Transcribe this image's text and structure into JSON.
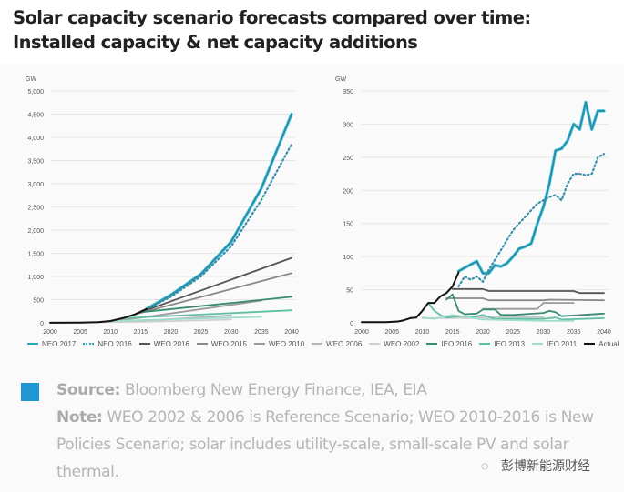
{
  "title": "Solar capacity scenario forecasts compared over time: Installed capacity & net capacity additions",
  "legend": [
    {
      "name": "NEO 2017",
      "color": "#2aa6c0",
      "style": "solid"
    },
    {
      "name": "NEO 2016",
      "color": "#2aa6c0",
      "style": "dotted"
    },
    {
      "name": "WEO 2016",
      "color": "#555555",
      "style": "solid"
    },
    {
      "name": "WEO 2015",
      "color": "#8a8a8a",
      "style": "solid"
    },
    {
      "name": "WEO 2010",
      "color": "#9a9a9a",
      "style": "solid"
    },
    {
      "name": "WEO 2006",
      "color": "#b5b5b5",
      "style": "solid"
    },
    {
      "name": "WEO 2002",
      "color": "#cfcfcf",
      "style": "solid"
    },
    {
      "name": "IEO 2016",
      "color": "#3a8a72",
      "style": "solid"
    },
    {
      "name": "IEO 2013",
      "color": "#5fbfa5",
      "style": "solid"
    },
    {
      "name": "IEO 2011",
      "color": "#9fdccb",
      "style": "solid"
    },
    {
      "name": "Actual",
      "color": "#111111",
      "style": "solid"
    }
  ],
  "footer": {
    "source_label": "Source:",
    "source_text": " Bloomberg New Energy Finance, IEA, EIA",
    "note_label": "Note:",
    "note_text": " WEO 2002 & 2006 is Reference Scenario; WEO 2010-2016 is New Policies Scenario; solar includes utility-scale, small-scale PV and solar thermal.",
    "watermark": "彭博新能源财经"
  },
  "chart_data": [
    {
      "type": "line",
      "title": "Installed capacity",
      "ylabel": "GW",
      "xlabel": "",
      "xlim": [
        2000,
        2040
      ],
      "ylim": [
        0,
        5000
      ],
      "xticks": [
        2000,
        2005,
        2010,
        2015,
        2020,
        2025,
        2030,
        2035,
        2040
      ],
      "yticks": [
        0,
        500,
        1000,
        1500,
        2000,
        2500,
        3000,
        3500,
        4000,
        4500,
        5000
      ],
      "ytick_labels": [
        "0",
        "500",
        "1,000",
        "1,500",
        "2,000",
        "2,500",
        "3,000",
        "3,500",
        "4,000",
        "4,500",
        "5,000"
      ],
      "grid": true,
      "series": [
        {
          "name": "NEO 2017",
          "x": [
            2016,
            2020,
            2025,
            2030,
            2035,
            2040
          ],
          "y": [
            300,
            600,
            1050,
            1750,
            2900,
            4500
          ]
        },
        {
          "name": "NEO 2016",
          "x": [
            2015,
            2020,
            2025,
            2030,
            2035,
            2040
          ],
          "y": [
            230,
            560,
            1000,
            1650,
            2650,
            3850
          ]
        },
        {
          "name": "WEO 2016",
          "x": [
            2015,
            2040
          ],
          "y": [
            230,
            1400
          ]
        },
        {
          "name": "WEO 2015",
          "x": [
            2014,
            2040
          ],
          "y": [
            180,
            1070
          ]
        },
        {
          "name": "WEO 2010",
          "x": [
            2010,
            2015,
            2035
          ],
          "y": [
            40,
            110,
            480
          ]
        },
        {
          "name": "WEO 2006",
          "x": [
            2005,
            2015,
            2030
          ],
          "y": [
            5,
            40,
            160
          ]
        },
        {
          "name": "WEO 2002",
          "x": [
            2000,
            2015,
            2030
          ],
          "y": [
            1,
            20,
            70
          ]
        },
        {
          "name": "IEO 2016",
          "x": [
            2015,
            2040
          ],
          "y": [
            230,
            560
          ]
        },
        {
          "name": "IEO 2013",
          "x": [
            2012,
            2040
          ],
          "y": [
            100,
            270
          ]
        },
        {
          "name": "IEO 2011",
          "x": [
            2010,
            2035
          ],
          "y": [
            40,
            130
          ]
        },
        {
          "name": "Actual",
          "x": [
            2000,
            2005,
            2008,
            2010,
            2012,
            2014,
            2016
          ],
          "y": [
            1,
            5,
            15,
            40,
            100,
            180,
            300
          ]
        }
      ]
    },
    {
      "type": "line",
      "title": "Net capacity additions",
      "ylabel": "GW",
      "xlabel": "",
      "xlim": [
        2000,
        2040
      ],
      "ylim": [
        0,
        350
      ],
      "xticks": [
        2000,
        2005,
        2010,
        2015,
        2020,
        2025,
        2030,
        2035,
        2040
      ],
      "yticks": [
        0,
        50,
        100,
        150,
        200,
        250,
        300,
        350
      ],
      "ytick_labels": [
        "0",
        "50",
        "100",
        "150",
        "200",
        "250",
        "300",
        "350"
      ],
      "grid": true,
      "series": [
        {
          "name": "NEO 2017",
          "x": [
            2016,
            2019,
            2020,
            2021,
            2022,
            2023,
            2024,
            2025,
            2026,
            2027,
            2028,
            2029,
            2030,
            2031,
            2032,
            2033,
            2034,
            2035,
            2036,
            2037,
            2038,
            2039,
            2040
          ],
          "y": [
            78,
            93,
            75,
            75,
            87,
            85,
            90,
            100,
            112,
            115,
            120,
            150,
            175,
            210,
            260,
            263,
            275,
            300,
            292,
            333,
            292,
            320,
            320
          ]
        },
        {
          "name": "NEO 2016",
          "x": [
            2016,
            2017,
            2018,
            2019,
            2020,
            2021,
            2022,
            2023,
            2024,
            2025,
            2026,
            2027,
            2028,
            2029,
            2030,
            2031,
            2032,
            2033,
            2034,
            2035,
            2036,
            2037,
            2038,
            2039,
            2040
          ],
          "y": [
            55,
            70,
            65,
            70,
            62,
            80,
            95,
            110,
            125,
            140,
            150,
            160,
            170,
            180,
            185,
            190,
            193,
            185,
            210,
            225,
            225,
            223,
            225,
            250,
            255
          ]
        },
        {
          "name": "WEO 2016",
          "x": [
            2015,
            2020,
            2021,
            2035,
            2036,
            2040
          ],
          "y": [
            51,
            51,
            48,
            48,
            45,
            45
          ]
        },
        {
          "name": "WEO 2015",
          "x": [
            2014,
            2020,
            2021,
            2030,
            2031,
            2040
          ],
          "y": [
            37,
            37,
            34,
            34,
            35,
            34
          ]
        },
        {
          "name": "WEO 2010",
          "x": [
            2020,
            2029,
            2030,
            2035
          ],
          "y": [
            21,
            21,
            30,
            30
          ]
        },
        {
          "name": "WEO 2006",
          "x": [
            2015,
            2030
          ],
          "y": [
            8,
            8
          ]
        },
        {
          "name": "WEO 2002",
          "x": [
            2010,
            2030
          ],
          "y": [
            7,
            7
          ]
        },
        {
          "name": "IEO 2016",
          "x": [
            2014,
            2015,
            2016,
            2017,
            2019,
            2020,
            2022,
            2023,
            2025,
            2030,
            2031,
            2032,
            2033,
            2040
          ],
          "y": [
            35,
            43,
            18,
            13,
            14,
            20,
            20,
            12,
            12,
            15,
            18,
            16,
            10,
            14
          ]
        },
        {
          "name": "IEO 2013",
          "x": [
            2011,
            2012,
            2013,
            2014,
            2016,
            2018,
            2020,
            2022,
            2030,
            2032,
            2033,
            2040
          ],
          "y": [
            30,
            18,
            12,
            8,
            10,
            8,
            12,
            6,
            6,
            8,
            5,
            7
          ]
        },
        {
          "name": "IEO 2011",
          "x": [
            2010,
            2012,
            2015,
            2020,
            2030,
            2035
          ],
          "y": [
            8,
            6,
            12,
            5,
            3,
            3
          ]
        },
        {
          "name": "Actual",
          "x": [
            2000,
            2004,
            2006,
            2007,
            2008,
            2009,
            2010,
            2011,
            2012,
            2013,
            2014,
            2015,
            2016
          ],
          "y": [
            1,
            1,
            2,
            4,
            7,
            8,
            18,
            30,
            30,
            40,
            45,
            55,
            76
          ]
        }
      ]
    }
  ]
}
